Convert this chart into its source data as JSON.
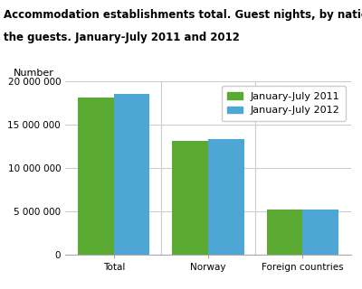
{
  "title_line1": "Accommodation establishments total. Guest nights, by nationality of",
  "title_line2": "the guests. January-July 2011 and 2012",
  "ylabel_text": "Number",
  "categories": [
    "Total",
    "Norway",
    "Foreign countries"
  ],
  "series": [
    {
      "label": "January-July 2011",
      "color": "#5aaa32",
      "values": [
        18050000,
        13050000,
        5150000
      ]
    },
    {
      "label": "January-July 2012",
      "color": "#4da6d4",
      "values": [
        18500000,
        13300000,
        5200000
      ]
    }
  ],
  "ylim": [
    0,
    20000000
  ],
  "yticks": [
    0,
    5000000,
    10000000,
    15000000,
    20000000
  ],
  "ytick_labels": [
    "0",
    "5 000 000",
    "10 000 000",
    "15 000 000",
    "20 000 000"
  ],
  "bar_width": 0.38,
  "grid_color": "#cccccc",
  "background_color": "#ffffff",
  "title_fontsize": 8.5,
  "tick_fontsize": 7.5,
  "legend_fontsize": 8,
  "ylabel_fontsize": 8
}
